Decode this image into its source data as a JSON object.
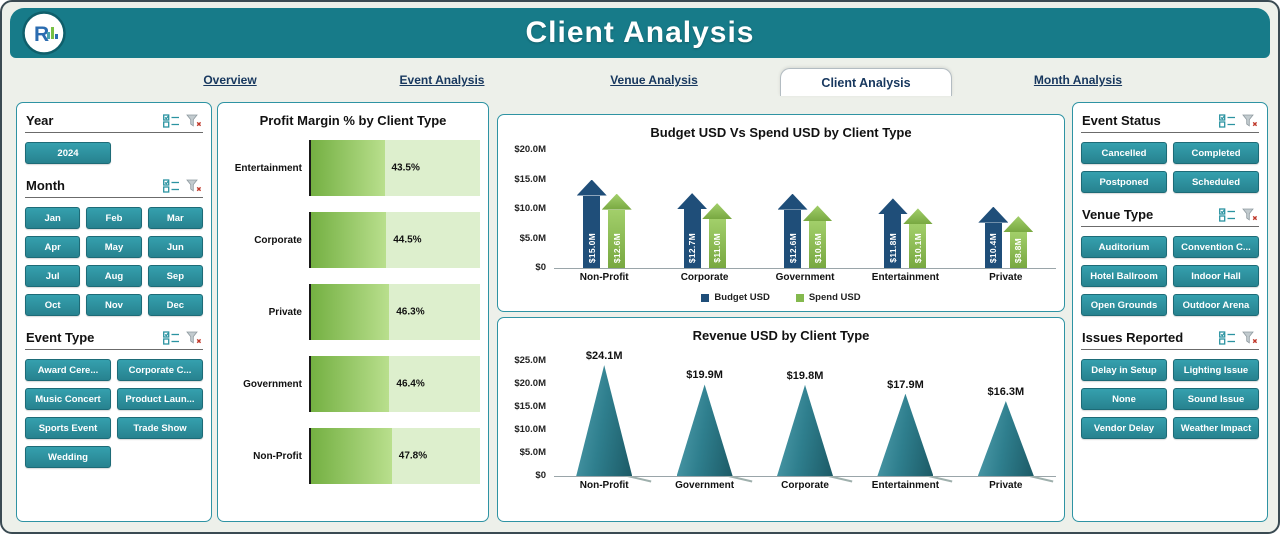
{
  "header": {
    "title": "Client Analysis",
    "logo_text": "R"
  },
  "tabs": [
    {
      "label": "Overview",
      "active": false
    },
    {
      "label": "Event Analysis",
      "active": false
    },
    {
      "label": "Venue Analysis",
      "active": false
    },
    {
      "label": "Client Analysis",
      "active": true
    },
    {
      "label": "Month Analysis",
      "active": false
    }
  ],
  "left_panel": {
    "year": {
      "title": "Year",
      "items": [
        "2024"
      ]
    },
    "month": {
      "title": "Month",
      "items": [
        "Jan",
        "Feb",
        "Mar",
        "Apr",
        "May",
        "Jun",
        "Jul",
        "Aug",
        "Sep",
        "Oct",
        "Nov",
        "Dec"
      ]
    },
    "event_type": {
      "title": "Event Type",
      "items": [
        "Award Cere...",
        "Corporate C...",
        "Music Concert",
        "Product Laun...",
        "Sports Event",
        "Trade Show",
        "Wedding"
      ]
    }
  },
  "right_panel": {
    "event_status": {
      "title": "Event Status",
      "items": [
        "Cancelled",
        "Completed",
        "Postponed",
        "Scheduled"
      ]
    },
    "venue_type": {
      "title": "Venue Type",
      "items": [
        "Auditorium",
        "Convention C...",
        "Hotel Ballroom",
        "Indoor Hall",
        "Open Grounds",
        "Outdoor Arena"
      ]
    },
    "issues_reported": {
      "title": "Issues Reported",
      "items": [
        "Delay in Setup",
        "Lighting Issue",
        "None",
        "Sound Issue",
        "Vendor Delay",
        "Weather Impact"
      ]
    }
  },
  "colors": {
    "banner_teal": "#177b89",
    "button_teal": "#2b93a1",
    "budget_navy": "#1f4e79",
    "spend_green": "#84b94e",
    "cone_teal": "#2f7f8e",
    "track_green": "#ddefcd"
  },
  "chart_data": [
    {
      "id": "profit_margin",
      "type": "bar",
      "orientation": "horizontal",
      "title": "Profit Margin % by Client Type",
      "categories": [
        "Entertainment",
        "Corporate",
        "Private",
        "Government",
        "Non-Profit"
      ],
      "values": [
        43.5,
        44.5,
        46.3,
        46.4,
        47.8
      ],
      "labels": [
        "43.5%",
        "44.5%",
        "46.3%",
        "46.4%",
        "47.8%"
      ],
      "xlim": [
        0,
        100
      ],
      "grid": false
    },
    {
      "id": "budget_vs_spend",
      "type": "bar",
      "shape": "arrow-column",
      "title": "Budget USD Vs Spend USD by Client Type",
      "categories": [
        "Non-Profit",
        "Corporate",
        "Government",
        "Entertainment",
        "Private"
      ],
      "series": [
        {
          "name": "Budget USD",
          "values": [
            15.0,
            12.7,
            12.6,
            11.8,
            10.4
          ],
          "labels": [
            "$15.0M",
            "$12.7M",
            "$12.6M",
            "$11.8M",
            "$10.4M"
          ]
        },
        {
          "name": "Spend USD",
          "values": [
            12.6,
            11.0,
            10.6,
            10.1,
            8.8
          ],
          "labels": [
            "$12.6M",
            "$11.0M",
            "$10.6M",
            "$10.1M",
            "$8.8M"
          ]
        }
      ],
      "y_ticks": [
        "$0",
        "$5.0M",
        "$10.0M",
        "$15.0M",
        "$20.0M"
      ],
      "ylim": [
        0,
        20
      ],
      "legend_position": "bottom",
      "grid": false
    },
    {
      "id": "revenue",
      "type": "bar",
      "shape": "cone",
      "title": "Revenue USD by Client Type",
      "categories": [
        "Non-Profit",
        "Government",
        "Corporate",
        "Entertainment",
        "Private"
      ],
      "values": [
        24.1,
        19.9,
        19.8,
        17.9,
        16.3
      ],
      "labels": [
        "$24.1M",
        "$19.9M",
        "$19.8M",
        "$17.9M",
        "$16.3M"
      ],
      "y_ticks": [
        "$0",
        "$5.0M",
        "$10.0M",
        "$15.0M",
        "$20.0M",
        "$25.0M"
      ],
      "ylim": [
        0,
        25
      ],
      "grid": false
    }
  ]
}
